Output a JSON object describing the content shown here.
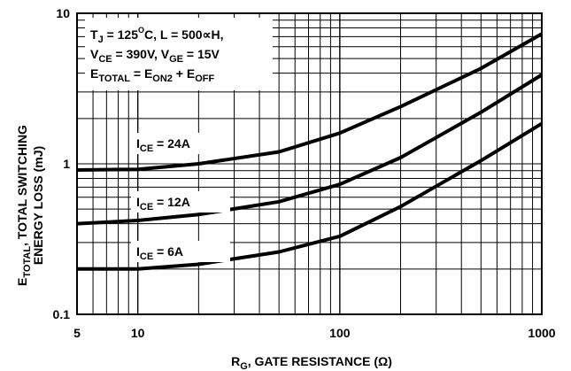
{
  "chart_data": {
    "type": "line",
    "x_scale": "log",
    "y_scale": "log",
    "xlim": [
      5,
      1000
    ],
    "ylim": [
      0.1,
      10
    ],
    "x_ticks": [
      {
        "value": 5,
        "label": "5"
      },
      {
        "value": 10,
        "label": "10"
      },
      {
        "value": 100,
        "label": "100"
      },
      {
        "value": 1000,
        "label": "1000"
      }
    ],
    "y_ticks": [
      {
        "value": 0.1,
        "label": "0.1"
      },
      {
        "value": 1,
        "label": "1"
      },
      {
        "value": 10,
        "label": "10"
      }
    ],
    "xlabel": {
      "main": "R",
      "sub": "G",
      "rest": ", GATE RESISTANCE (Ω)"
    },
    "ylabel": {
      "line1": {
        "main": "E",
        "sub": "TOTAL",
        "rest": ", TOTAL SWITCHING"
      },
      "line2": "ENERGY LOSS (mJ)"
    },
    "grid": true,
    "annotation": [
      [
        {
          "t": "T"
        },
        {
          "t": "J",
          "sub": true
        },
        {
          "t": " = 125"
        },
        {
          "t": "O",
          "sup": true
        },
        {
          "t": "C, L = 500∝H,"
        }
      ],
      [
        {
          "t": "V"
        },
        {
          "t": "CE",
          "sub": true
        },
        {
          "t": " = 390V, V"
        },
        {
          "t": "GE",
          "sub": true
        },
        {
          "t": " = 15V"
        }
      ],
      [
        {
          "t": "E"
        },
        {
          "t": "TOTAL",
          "sub": true
        },
        {
          "t": " = E"
        },
        {
          "t": "ON2",
          "sub": true
        },
        {
          "t": " + E"
        },
        {
          "t": "OFF",
          "sub": true
        }
      ]
    ],
    "series": [
      {
        "label": {
          "main": "I",
          "sub": "CE",
          "rest": " = 24A"
        },
        "x": [
          5,
          10,
          20,
          50,
          100,
          200,
          500,
          1000
        ],
        "y": [
          0.91,
          0.92,
          1.0,
          1.2,
          1.6,
          2.4,
          4.3,
          7.3
        ]
      },
      {
        "label": {
          "main": "I",
          "sub": "CE",
          "rest": " = 12A"
        },
        "x": [
          5,
          10,
          20,
          50,
          100,
          200,
          500,
          1000
        ],
        "y": [
          0.4,
          0.42,
          0.46,
          0.56,
          0.73,
          1.1,
          2.2,
          3.9
        ]
      },
      {
        "label": {
          "main": "I",
          "sub": "CE",
          "rest": " = 6A"
        },
        "x": [
          5,
          10,
          20,
          50,
          100,
          200,
          500,
          1000
        ],
        "y": [
          0.2,
          0.2,
          0.215,
          0.26,
          0.33,
          0.52,
          1.05,
          1.85
        ]
      }
    ]
  }
}
